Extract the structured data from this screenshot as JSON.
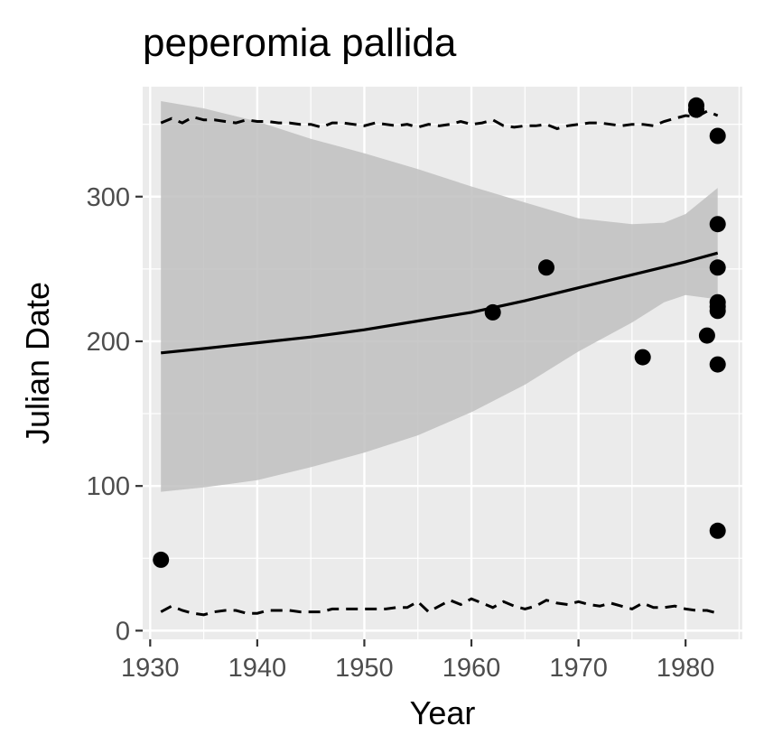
{
  "chart_data": {
    "type": "scatter",
    "title": "peperomia pallida",
    "xlabel": "Year",
    "ylabel": "Julian Date",
    "xlim": [
      1929.3,
      1985.3
    ],
    "ylim": [
      -6,
      376
    ],
    "x_ticks": [
      1930,
      1940,
      1950,
      1960,
      1970,
      1980
    ],
    "y_ticks": [
      0,
      100,
      200,
      300
    ],
    "grid": true,
    "legend": "none",
    "colors": {
      "panel_bg": "#ebebeb",
      "grid": "#ffffff",
      "points": "#000000",
      "ribbon": "#c0c0c0",
      "tick_label": "#4d4d4d"
    },
    "points": [
      {
        "x": 1931,
        "y": 49
      },
      {
        "x": 1962,
        "y": 220
      },
      {
        "x": 1967,
        "y": 251
      },
      {
        "x": 1976,
        "y": 189
      },
      {
        "x": 1981,
        "y": 363
      },
      {
        "x": 1981,
        "y": 360
      },
      {
        "x": 1982,
        "y": 204
      },
      {
        "x": 1983,
        "y": 342
      },
      {
        "x": 1983,
        "y": 281
      },
      {
        "x": 1983,
        "y": 251
      },
      {
        "x": 1983,
        "y": 227
      },
      {
        "x": 1983,
        "y": 224
      },
      {
        "x": 1983,
        "y": 221
      },
      {
        "x": 1983,
        "y": 184
      },
      {
        "x": 1983,
        "y": 69
      }
    ],
    "trend_line": {
      "x": [
        1931,
        1935,
        1940,
        1945,
        1950,
        1955,
        1960,
        1965,
        1970,
        1975,
        1980,
        1983
      ],
      "y": [
        192,
        195,
        199,
        203,
        208,
        214,
        220,
        228,
        237,
        246,
        255,
        261
      ]
    },
    "confidence_band": {
      "x": [
        1931,
        1935,
        1940,
        1945,
        1950,
        1955,
        1960,
        1965,
        1970,
        1975,
        1978,
        1980,
        1983
      ],
      "lower": [
        96,
        99,
        104,
        113,
        123,
        135,
        151,
        170,
        193,
        213,
        227,
        232,
        229
      ],
      "upper": [
        366,
        361,
        352,
        340,
        330,
        319,
        307,
        296,
        285,
        281,
        282,
        288,
        306
      ]
    },
    "upper_dashed": {
      "x": [
        1931,
        1932,
        1933,
        1934,
        1935,
        1936,
        1937,
        1938,
        1939,
        1940,
        1941,
        1942,
        1943,
        1944,
        1945,
        1946,
        1947,
        1948,
        1949,
        1950,
        1951,
        1952,
        1953,
        1954,
        1955,
        1956,
        1957,
        1958,
        1959,
        1960,
        1961,
        1962,
        1963,
        1964,
        1965,
        1966,
        1967,
        1968,
        1969,
        1970,
        1971,
        1972,
        1973,
        1974,
        1975,
        1976,
        1977,
        1978,
        1979,
        1980,
        1981,
        1982,
        1983
      ],
      "y": [
        351,
        354,
        351,
        355,
        353,
        353,
        352,
        351,
        353,
        352,
        352,
        351,
        351,
        350,
        350,
        348,
        351,
        351,
        350,
        349,
        351,
        350,
        349,
        350,
        348,
        350,
        349,
        350,
        352,
        350,
        351,
        353,
        349,
        348,
        349,
        349,
        350,
        347,
        349,
        350,
        351,
        351,
        350,
        349,
        350,
        350,
        349,
        352,
        354,
        356,
        355,
        359,
        356
      ]
    },
    "lower_dashed": {
      "x": [
        1931,
        1932,
        1933,
        1934,
        1935,
        1936,
        1937,
        1938,
        1939,
        1940,
        1941,
        1942,
        1943,
        1944,
        1945,
        1946,
        1947,
        1948,
        1949,
        1950,
        1951,
        1952,
        1953,
        1954,
        1955,
        1956,
        1957,
        1958,
        1959,
        1960,
        1961,
        1962,
        1963,
        1964,
        1965,
        1966,
        1967,
        1968,
        1969,
        1970,
        1971,
        1972,
        1973,
        1974,
        1975,
        1976,
        1977,
        1978,
        1979,
        1980,
        1981,
        1982,
        1983
      ],
      "y": [
        13,
        17,
        14,
        12,
        11,
        13,
        14,
        14,
        12,
        12,
        14,
        14,
        14,
        13,
        13,
        13,
        15,
        15,
        15,
        15,
        15,
        15,
        16,
        16,
        20,
        13,
        17,
        21,
        18,
        22,
        19,
        16,
        20,
        17,
        15,
        17,
        21,
        19,
        18,
        20,
        18,
        17,
        19,
        17,
        15,
        19,
        16,
        16,
        17,
        15,
        14,
        14,
        12
      ]
    }
  }
}
